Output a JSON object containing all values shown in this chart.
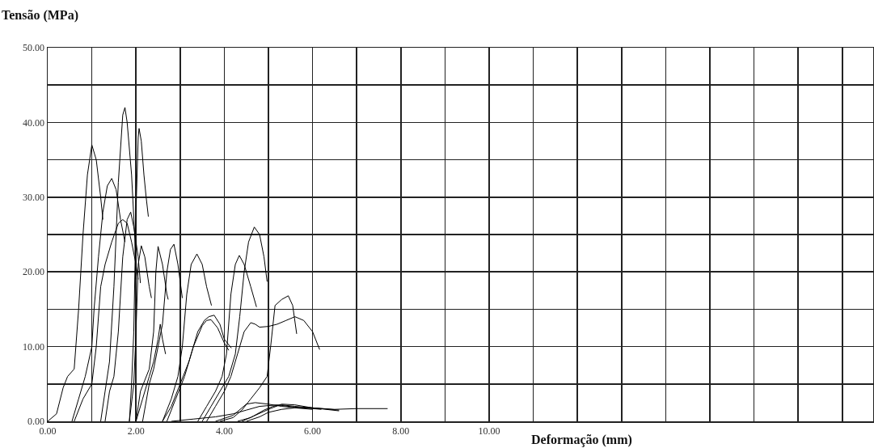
{
  "chart_data": {
    "type": "line",
    "xlabel": "Deformação (mm)",
    "ylabel": "Tensão (MPa)",
    "grid": true,
    "xlim": [
      0,
      18.7
    ],
    "ylim": [
      0,
      50
    ],
    "xticks": [
      {
        "value": 0,
        "label": "0.00"
      },
      {
        "value": 1,
        "label": null
      },
      {
        "value": 2,
        "label": "2.00"
      },
      {
        "value": 3,
        "label": null
      },
      {
        "value": 4,
        "label": "4.00"
      },
      {
        "value": 5,
        "label": null
      },
      {
        "value": 6,
        "label": "6.00"
      },
      {
        "value": 7,
        "label": null
      },
      {
        "value": 8,
        "label": "8.00"
      },
      {
        "value": 9,
        "label": null
      },
      {
        "value": 10,
        "label": "10.00"
      },
      {
        "value": 11,
        "label": null
      },
      {
        "value": 12,
        "label": null
      },
      {
        "value": 13,
        "label": null
      },
      {
        "value": 14,
        "label": null
      },
      {
        "value": 15,
        "label": null
      },
      {
        "value": 16,
        "label": null
      },
      {
        "value": 17,
        "label": null
      },
      {
        "value": 18,
        "label": null
      }
    ],
    "yticks": [
      {
        "value": 0,
        "label": "0.00"
      },
      {
        "value": 5,
        "label": null
      },
      {
        "value": 10,
        "label": "10.00"
      },
      {
        "value": 15,
        "label": null
      },
      {
        "value": 20,
        "label": "20.00"
      },
      {
        "value": 25,
        "label": null
      },
      {
        "value": 30,
        "label": "30.00"
      },
      {
        "value": 35,
        "label": null
      },
      {
        "value": 40,
        "label": "40.00"
      },
      {
        "value": 45,
        "label": null
      },
      {
        "value": 50,
        "label": "50.00"
      }
    ],
    "series": [
      {
        "color": "#000000",
        "x": [
          0,
          0.2,
          0.35,
          0.45,
          0.6,
          0.7,
          0.8,
          0.9,
          1.0,
          1.1,
          1.2,
          1.25
        ],
        "values": [
          0,
          1,
          4.5,
          6,
          7,
          15,
          25,
          33,
          37,
          35,
          30,
          27
        ]
      },
      {
        "color": "#000000",
        "x": [
          0.55,
          0.7,
          0.85,
          1.0,
          1.05,
          1.15,
          1.25,
          1.35,
          1.45,
          1.55,
          1.65,
          1.75
        ],
        "values": [
          0,
          3,
          6,
          10,
          15,
          22,
          28,
          31.5,
          32.5,
          31,
          27,
          24
        ]
      },
      {
        "color": "#000000",
        "x": [
          1.2,
          1.3,
          1.4,
          1.5,
          1.6,
          1.7,
          1.75,
          1.8,
          1.9,
          1.97,
          2.0
        ],
        "values": [
          0,
          4,
          8,
          18,
          32,
          41,
          42,
          40,
          33,
          25,
          19
        ]
      },
      {
        "color": "#000000",
        "x": [
          1.85,
          1.9,
          1.95,
          2.0,
          2.05,
          2.07,
          2.12,
          2.18,
          2.23,
          2.28
        ],
        "values": [
          0,
          5,
          12,
          28,
          38,
          39.2,
          37.5,
          33,
          30,
          27.4
        ]
      },
      {
        "color": "#000000",
        "x": [
          0.6,
          0.8,
          1.0,
          1.1,
          1.2,
          1.3,
          1.45,
          1.6,
          1.7,
          1.8,
          1.9,
          2.0,
          2.05
        ],
        "values": [
          0,
          3,
          5,
          10,
          18,
          21,
          24,
          26.5,
          27,
          26.5,
          24,
          21,
          19
        ]
      },
      {
        "color": "#000000",
        "x": [
          1.3,
          1.4,
          1.5,
          1.6,
          1.7,
          1.8,
          1.88,
          1.95,
          2.05,
          2.1
        ],
        "values": [
          0,
          4,
          6,
          12,
          22,
          27,
          28,
          26,
          22,
          18.5
        ]
      },
      {
        "color": "#000000",
        "x": [
          1.85,
          1.95,
          2.0,
          2.05,
          2.12,
          2.2,
          2.3,
          2.35
        ],
        "values": [
          0,
          5,
          12,
          21,
          23.5,
          22,
          18,
          16.5
        ]
      },
      {
        "color": "#000000",
        "x": [
          2.0,
          2.1,
          2.2,
          2.3,
          2.4,
          2.45,
          2.5,
          2.6,
          2.7,
          2.73
        ],
        "values": [
          0,
          4,
          5.5,
          7,
          12,
          20,
          23.4,
          21,
          17,
          16.3
        ]
      },
      {
        "color": "#000000",
        "x": [
          2.15,
          2.3,
          2.4,
          2.5,
          2.6,
          2.7,
          2.78,
          2.86,
          2.95,
          3.05
        ],
        "values": [
          0,
          5,
          7,
          10,
          13,
          20,
          23,
          23.7,
          21,
          16.5
        ]
      },
      {
        "color": "#000000",
        "x": [
          2.0,
          2.15,
          2.3,
          2.4,
          2.5,
          2.55,
          2.6,
          2.67
        ],
        "values": [
          0,
          3,
          6,
          8,
          11,
          13,
          11,
          9
        ]
      },
      {
        "color": "#000000",
        "x": [
          2.6,
          2.8,
          2.95,
          3.05,
          3.15,
          3.25,
          3.38,
          3.5,
          3.6,
          3.71
        ],
        "values": [
          0,
          3,
          6,
          10,
          17,
          21,
          22.4,
          21,
          18,
          15.5
        ]
      },
      {
        "color": "#000000",
        "x": [
          2.6,
          2.8,
          3.0,
          3.2,
          3.4,
          3.55,
          3.65,
          3.77,
          3.9,
          4.0,
          4.16
        ],
        "values": [
          0,
          2,
          5,
          8,
          12,
          13.5,
          14,
          14.2,
          13,
          11,
          9.8
        ]
      },
      {
        "color": "#000000",
        "x": [
          2.7,
          2.9,
          3.1,
          3.3,
          3.5,
          3.6,
          3.7,
          3.85,
          4.0,
          4.1
        ],
        "values": [
          0,
          3,
          6,
          10,
          12.8,
          13.5,
          13.6,
          12.5,
          10.5,
          9.5
        ]
      },
      {
        "color": "#000000",
        "x": [
          3.4,
          3.6,
          3.8,
          3.95,
          4.05,
          4.15,
          4.25,
          4.34,
          4.45,
          4.6,
          4.73
        ],
        "values": [
          0,
          2,
          4,
          6,
          9,
          17,
          21,
          22.2,
          21,
          18,
          15.3
        ]
      },
      {
        "color": "#000000",
        "x": [
          3.5,
          3.7,
          3.9,
          4.1,
          4.25,
          4.35,
          4.45,
          4.55,
          4.68,
          4.8,
          4.9,
          4.97
        ],
        "values": [
          0,
          2,
          4,
          6,
          9,
          14,
          20,
          24,
          26,
          25,
          22,
          18.7
        ]
      },
      {
        "color": "#000000",
        "x": [
          3.6,
          3.8,
          4.0,
          4.15,
          4.3,
          4.45,
          4.6,
          4.7,
          4.8,
          5.0,
          5.2,
          5.4,
          5.6,
          5.8,
          6.0,
          6.16
        ],
        "values": [
          0,
          2,
          4,
          6,
          9,
          12,
          13.2,
          13,
          12.6,
          12.7,
          13,
          13.5,
          14,
          13.5,
          12,
          9.6
        ]
      },
      {
        "color": "#000000",
        "x": [
          3.9,
          4.2,
          4.4,
          4.6,
          4.8,
          4.97,
          5.05,
          5.15,
          5.3,
          5.45,
          5.55,
          5.64
        ],
        "values": [
          0,
          0.5,
          1.5,
          3,
          4.5,
          6,
          10,
          15.5,
          16.3,
          16.8,
          15.5,
          11.7
        ]
      },
      {
        "color": "#000000",
        "x": [
          3.8,
          4.2,
          4.5,
          4.7,
          5.0,
          5.3,
          5.6,
          6.0
        ],
        "values": [
          0,
          0.8,
          2.3,
          2.5,
          2.3,
          2,
          1.8,
          1.6
        ]
      },
      {
        "color": "#000000",
        "x": [
          4.3,
          4.6,
          4.9,
          5.1,
          5.3,
          5.6,
          6.0,
          6.5,
          7.0,
          7.7
        ],
        "values": [
          0,
          0.5,
          1.5,
          2,
          2.2,
          2,
          1.8,
          1.6,
          1.7,
          1.7
        ]
      },
      {
        "color": "#000000",
        "x": [
          4.4,
          4.7,
          5.0,
          5.3,
          5.6,
          6.0,
          6.6
        ],
        "values": [
          0,
          0.8,
          1.6,
          2.3,
          2.2,
          1.8,
          1.4
        ]
      },
      {
        "color": "#000000",
        "x": [
          4.5,
          4.8,
          5.0,
          5.3,
          5.6,
          6.0,
          6.6
        ],
        "values": [
          0,
          0.6,
          1.2,
          1.6,
          1.8,
          1.8,
          1.5
        ]
      },
      {
        "color": "#000000",
        "x": [
          2.8,
          3.3,
          3.8,
          4.2,
          4.5,
          4.8,
          5.2,
          5.6,
          6.2
        ],
        "values": [
          0,
          0.3,
          0.6,
          1.0,
          1.5,
          2.0,
          2.2,
          1.9,
          1.6
        ]
      }
    ]
  }
}
